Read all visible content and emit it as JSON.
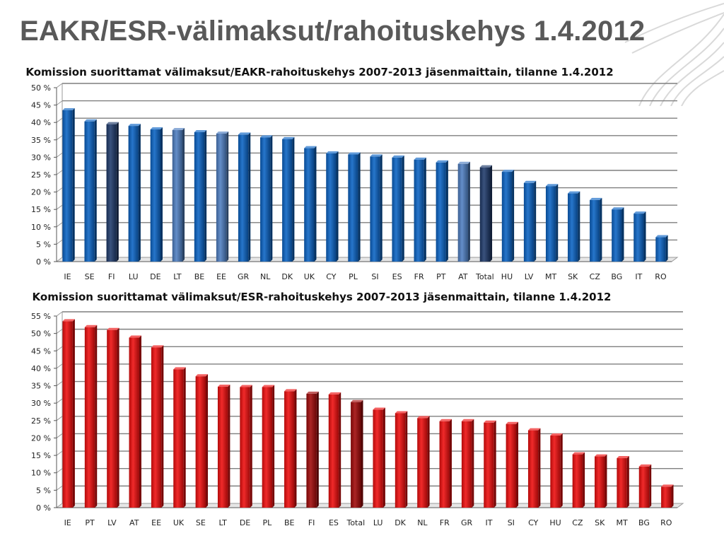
{
  "slide": {
    "title": "EAKR/ESR-välimaksut/rahoituskehys 1.4.2012"
  },
  "chart_data": [
    {
      "type": "bar",
      "title": "Komission suorittamat välimaksut/EAKR-rahoituskehys 2007-2013 jäsenmaittain, tilanne 1.4.2012",
      "categories": [
        "IE",
        "SE",
        "FI",
        "LU",
        "DE",
        "LT",
        "BE",
        "EE",
        "GR",
        "NL",
        "DK",
        "UK",
        "CY",
        "PL",
        "SI",
        "ES",
        "FR",
        "PT",
        "AT",
        "Total",
        "HU",
        "LV",
        "MT",
        "SK",
        "CZ",
        "BG",
        "IT",
        "RO"
      ],
      "values": [
        43.5,
        40.3,
        39.5,
        39.0,
        38.0,
        37.8,
        37.2,
        36.8,
        36.5,
        35.7,
        35.2,
        32.6,
        31.1,
        30.8,
        30.2,
        29.9,
        29.3,
        28.5,
        28.1,
        27.1,
        25.8,
        22.6,
        21.7,
        19.6,
        17.7,
        15.0,
        13.8,
        7.0
      ],
      "highlight": {
        "FI": "#1f3a6b",
        "LT": "#4f7fc2",
        "EE": "#4f7fc2",
        "AT": "#4f7fc2",
        "Total": "#1f3a6b"
      },
      "ylim": [
        0,
        50
      ],
      "ytick_labels": [
        "0 %",
        "5 %",
        "10 %",
        "15 %",
        "20 %",
        "25 %",
        "30 %",
        "35 %",
        "40 %",
        "45 %",
        "50 %"
      ],
      "xlabel": "",
      "ylabel": "",
      "bar_color": "#0a63c4",
      "grid": true
    },
    {
      "type": "bar",
      "title": "Komission suorittamat välimaksut/ESR-rahoituskehys 2007-2013 jäsenmaittain, tilanne 1.4.2012",
      "categories": [
        "IE",
        "PT",
        "LV",
        "AT",
        "EE",
        "UK",
        "SE",
        "LT",
        "DE",
        "PL",
        "BE",
        "FI",
        "ES",
        "Total",
        "LU",
        "DK",
        "NL",
        "FR",
        "GR",
        "IT",
        "SI",
        "CY",
        "HU",
        "CZ",
        "SK",
        "MT",
        "BG",
        "RO"
      ],
      "values": [
        53.5,
        51.8,
        51.0,
        48.8,
        46.0,
        39.7,
        37.7,
        34.7,
        34.6,
        34.6,
        33.4,
        32.7,
        32.5,
        30.3,
        28.1,
        27.1,
        25.7,
        24.8,
        24.8,
        24.4,
        24.0,
        22.2,
        20.7,
        15.3,
        14.7,
        14.2,
        11.8,
        6.0
      ],
      "highlight": {
        "FI": "#a00808",
        "Total": "#a00808"
      },
      "ylim": [
        0,
        55
      ],
      "ytick_labels": [
        "0 %",
        "5 %",
        "10 %",
        "15 %",
        "20 %",
        "25 %",
        "30 %",
        "35 %",
        "40 %",
        "45 %",
        "50 %",
        "55 %"
      ],
      "xlabel": "",
      "ylabel": "",
      "bar_color": "#ee0d0d",
      "grid": true
    }
  ]
}
